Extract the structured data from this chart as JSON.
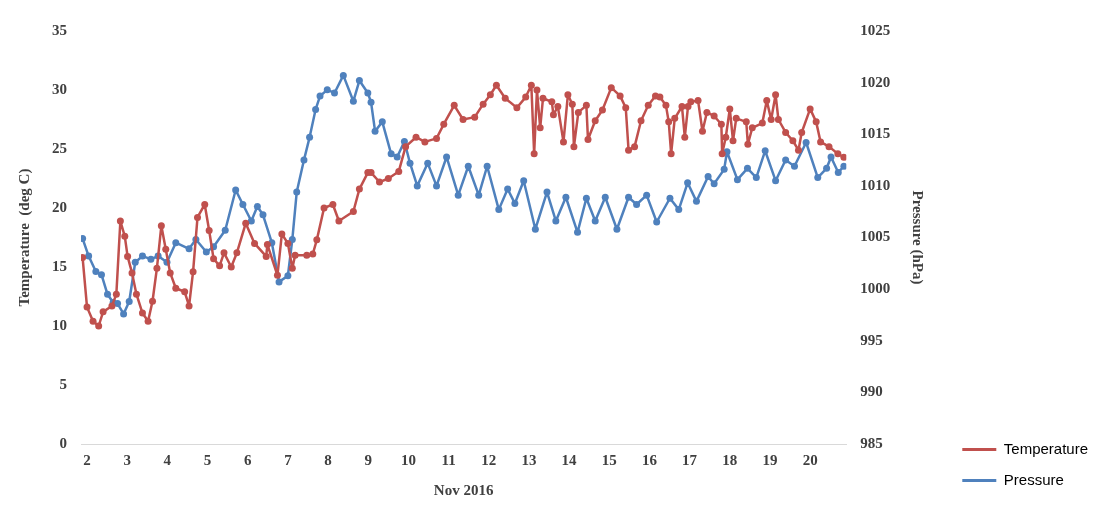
{
  "chart_data": {
    "type": "line",
    "xlabel": "Nov 2016",
    "ylabel": "Temperature  (deg C)",
    "y2label": "Pressure (hPa)",
    "xlim": [
      1.85,
      20.9
    ],
    "xticks": [
      2,
      3,
      4,
      5,
      6,
      7,
      8,
      9,
      10,
      11,
      12,
      13,
      14,
      15,
      16,
      17,
      18,
      19,
      20
    ],
    "ylim": [
      0,
      35
    ],
    "yticks": [
      0,
      5,
      10,
      15,
      20,
      25,
      30,
      35
    ],
    "y2lim": [
      985,
      1025
    ],
    "y2ticks": [
      985,
      990,
      995,
      1000,
      1005,
      1010,
      1015,
      1020,
      1025
    ],
    "grid": false,
    "legend": "bottom right",
    "marker": "circle",
    "line_style": "solid",
    "series": [
      {
        "name": "Temperature",
        "color": "#c0504d",
        "x": [
          1.89,
          2.0,
          2.15,
          2.29,
          2.4,
          2.62,
          2.73,
          2.83,
          2.94,
          3.01,
          3.12,
          3.23,
          3.38,
          3.52,
          3.63,
          3.74,
          3.85,
          3.96,
          4.07,
          4.21,
          4.43,
          4.54,
          4.64,
          4.75,
          4.93,
          5.04,
          5.15,
          5.3,
          5.41,
          5.59,
          5.73,
          5.95,
          6.17,
          6.46,
          6.49,
          6.74,
          6.85,
          7.0,
          7.11,
          7.18,
          7.47,
          7.62,
          7.72,
          7.9,
          8.12,
          8.27,
          8.63,
          8.78,
          8.99,
          9.07,
          9.28,
          9.5,
          9.76,
          9.93,
          10.19,
          10.41,
          10.7,
          10.88,
          11.14,
          11.36,
          11.65,
          11.86,
          12.04,
          12.19,
          12.41,
          12.7,
          12.92,
          13.06,
          13.13,
          13.2,
          13.28,
          13.35,
          13.57,
          13.61,
          13.72,
          13.86,
          13.97,
          14.08,
          14.12,
          14.23,
          14.43,
          14.47,
          14.65,
          14.83,
          15.05,
          15.27,
          15.41,
          15.48,
          15.63,
          15.79,
          15.97,
          16.15,
          16.26,
          16.41,
          16.48,
          16.54,
          16.63,
          16.81,
          16.88,
          16.96,
          17.03,
          17.21,
          17.32,
          17.43,
          17.61,
          17.79,
          17.81,
          17.9,
          18.0,
          18.08,
          18.16,
          18.41,
          18.45,
          18.56,
          18.81,
          18.92,
          19.03,
          19.14,
          19.21,
          19.39,
          19.57,
          19.71,
          19.79,
          20.0,
          20.15,
          20.26,
          20.47,
          20.69,
          20.84
        ],
        "values": [
          15.8,
          11.6,
          10.4,
          10.0,
          11.2,
          11.7,
          12.7,
          18.9,
          17.6,
          15.9,
          14.5,
          12.7,
          11.1,
          10.4,
          12.1,
          14.9,
          18.5,
          16.5,
          14.5,
          13.2,
          12.9,
          11.7,
          14.6,
          19.2,
          20.3,
          18.1,
          15.7,
          15.1,
          16.2,
          15.0,
          16.2,
          18.7,
          17.0,
          15.9,
          16.9,
          14.3,
          17.8,
          17.0,
          14.9,
          16.0,
          16.0,
          16.1,
          17.3,
          20.0,
          20.3,
          18.9,
          19.7,
          21.6,
          23.0,
          23.0,
          22.2,
          22.5,
          23.1,
          25.2,
          26.0,
          25.6,
          25.9,
          27.1,
          28.7,
          27.5,
          27.7,
          28.8,
          29.6,
          30.4,
          29.3,
          28.5,
          29.4,
          30.4,
          24.6,
          30.0,
          26.8,
          29.3,
          29.0,
          27.9,
          28.6,
          25.6,
          29.6,
          28.8,
          25.2,
          28.1,
          28.7,
          25.8,
          27.4,
          28.3,
          30.2,
          29.5,
          28.5,
          24.9,
          25.2,
          27.4,
          28.7,
          29.5,
          29.4,
          28.7,
          27.3,
          24.6,
          27.6,
          28.6,
          26.0,
          28.6,
          29.0,
          29.1,
          26.5,
          28.1,
          27.8,
          27.1,
          24.6,
          26.0,
          28.4,
          25.7,
          27.6,
          27.3,
          25.4,
          26.8,
          27.2,
          29.1,
          27.5,
          29.6,
          27.5,
          26.4,
          25.7,
          24.9,
          26.4,
          28.4,
          27.3,
          25.6,
          25.2,
          24.6,
          24.3
        ]
      },
      {
        "name": "Pressure",
        "color": "#4f81bd",
        "axis": "y2",
        "x": [
          1.89,
          2.04,
          2.22,
          2.36,
          2.51,
          2.65,
          2.76,
          2.91,
          3.05,
          3.2,
          3.38,
          3.59,
          3.77,
          3.99,
          4.21,
          4.54,
          4.71,
          4.97,
          5.15,
          5.44,
          5.7,
          5.88,
          6.09,
          6.24,
          6.38,
          6.6,
          6.78,
          7.0,
          7.11,
          7.22,
          7.4,
          7.54,
          7.69,
          7.8,
          7.98,
          8.16,
          8.38,
          8.63,
          8.78,
          8.99,
          9.07,
          9.17,
          9.35,
          9.57,
          9.72,
          9.9,
          10.04,
          10.22,
          10.48,
          10.7,
          10.95,
          11.24,
          11.49,
          11.75,
          11.96,
          12.25,
          12.47,
          12.65,
          12.87,
          13.16,
          13.45,
          13.67,
          13.92,
          14.21,
          14.43,
          14.65,
          14.9,
          15.19,
          15.48,
          15.68,
          15.93,
          16.18,
          16.51,
          16.73,
          16.95,
          17.17,
          17.46,
          17.61,
          17.86,
          17.93,
          18.19,
          18.44,
          18.66,
          18.88,
          19.14,
          19.39,
          19.61,
          19.9,
          20.19,
          20.41,
          20.52,
          20.7,
          20.84
        ],
        "values": [
          1004.9,
          1003.2,
          1001.7,
          1001.4,
          999.5,
          998.7,
          998.6,
          997.6,
          998.8,
          1002.6,
          1003.2,
          1002.9,
          1003.2,
          1002.6,
          1004.5,
          1003.9,
          1004.8,
          1003.6,
          1004.1,
          1005.7,
          1009.6,
          1008.2,
          1006.6,
          1008.0,
          1007.2,
          1004.5,
          1000.7,
          1001.3,
          1004.8,
          1009.4,
          1012.5,
          1014.7,
          1017.4,
          1018.7,
          1019.3,
          1019.0,
          1020.7,
          1018.2,
          1020.2,
          1019.0,
          1018.1,
          1015.3,
          1016.2,
          1013.1,
          1012.8,
          1014.3,
          1012.2,
          1010.0,
          1012.2,
          1010.0,
          1012.8,
          1009.1,
          1011.9,
          1009.1,
          1011.9,
          1007.7,
          1009.7,
          1008.3,
          1010.5,
          1005.8,
          1009.4,
          1006.6,
          1008.9,
          1005.5,
          1008.8,
          1006.6,
          1008.9,
          1005.8,
          1008.9,
          1008.2,
          1009.1,
          1006.5,
          1008.8,
          1007.7,
          1010.3,
          1008.5,
          1010.9,
          1010.2,
          1011.6,
          1013.3,
          1010.6,
          1011.7,
          1010.8,
          1013.4,
          1010.5,
          1012.5,
          1011.9,
          1014.2,
          1010.8,
          1011.7,
          1012.8,
          1011.3,
          1011.9
        ]
      }
    ]
  }
}
